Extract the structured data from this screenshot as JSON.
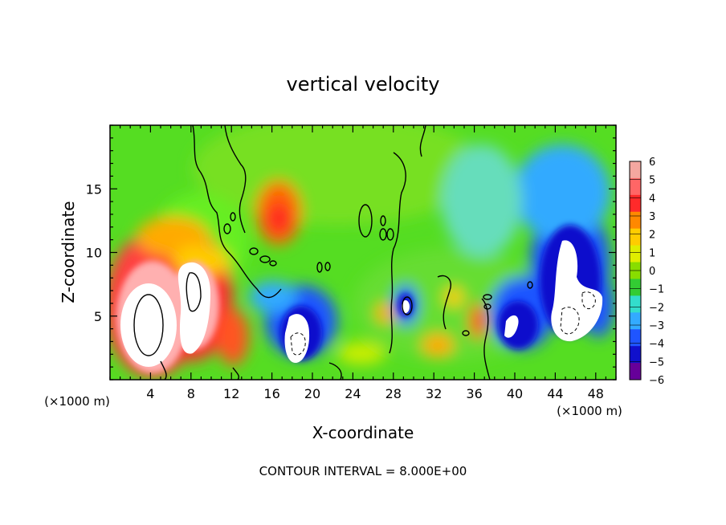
{
  "chart_data": {
    "type": "heatmap",
    "title": "vertical velocity",
    "xlabel": "X-coordinate",
    "ylabel": "Z-coordinate",
    "x_unit": "(×1000 m)",
    "x_unit_right": "(×1000 m)",
    "xlim": [
      0,
      50
    ],
    "ylim": [
      0,
      20
    ],
    "x_ticks": [
      4,
      8,
      12,
      16,
      20,
      24,
      28,
      32,
      36,
      40,
      44,
      48
    ],
    "y_ticks": [
      5,
      10,
      15
    ],
    "footer": "CONTOUR INTERVAL = 8.000E+00",
    "colorbar": {
      "levels": [
        "6",
        "5",
        "4",
        "3",
        "2",
        "1",
        "0",
        "−1",
        "−2",
        "−3",
        "−4",
        "−5",
        "−6"
      ],
      "colors": [
        "#f4a7a0",
        "#ff6666",
        "#ff2a2a",
        "#ff8800",
        "#ffcc00",
        "#e0ee00",
        "#88dd00",
        "#33cc33",
        "#33ddcc",
        "#33aaff",
        "#1f55ff",
        "#1010cc",
        "#660099"
      ]
    },
    "features": [
      {
        "x": 4.5,
        "z": 5,
        "value": 8,
        "kind": "updraft"
      },
      {
        "x": 8.5,
        "z": 6.5,
        "value": 7,
        "kind": "updraft"
      },
      {
        "x": 17,
        "z": 12.5,
        "value": 4.5,
        "kind": "updraft"
      },
      {
        "x": 18,
        "z": 4.5,
        "value": -7,
        "kind": "downdraft"
      },
      {
        "x": 29.5,
        "z": 5.5,
        "value": -6.5,
        "kind": "downdraft"
      },
      {
        "x": 40,
        "z": 4.5,
        "value": -7,
        "kind": "downdraft"
      },
      {
        "x": 45,
        "z": 7,
        "value": -7.5,
        "kind": "downdraft"
      }
    ]
  }
}
